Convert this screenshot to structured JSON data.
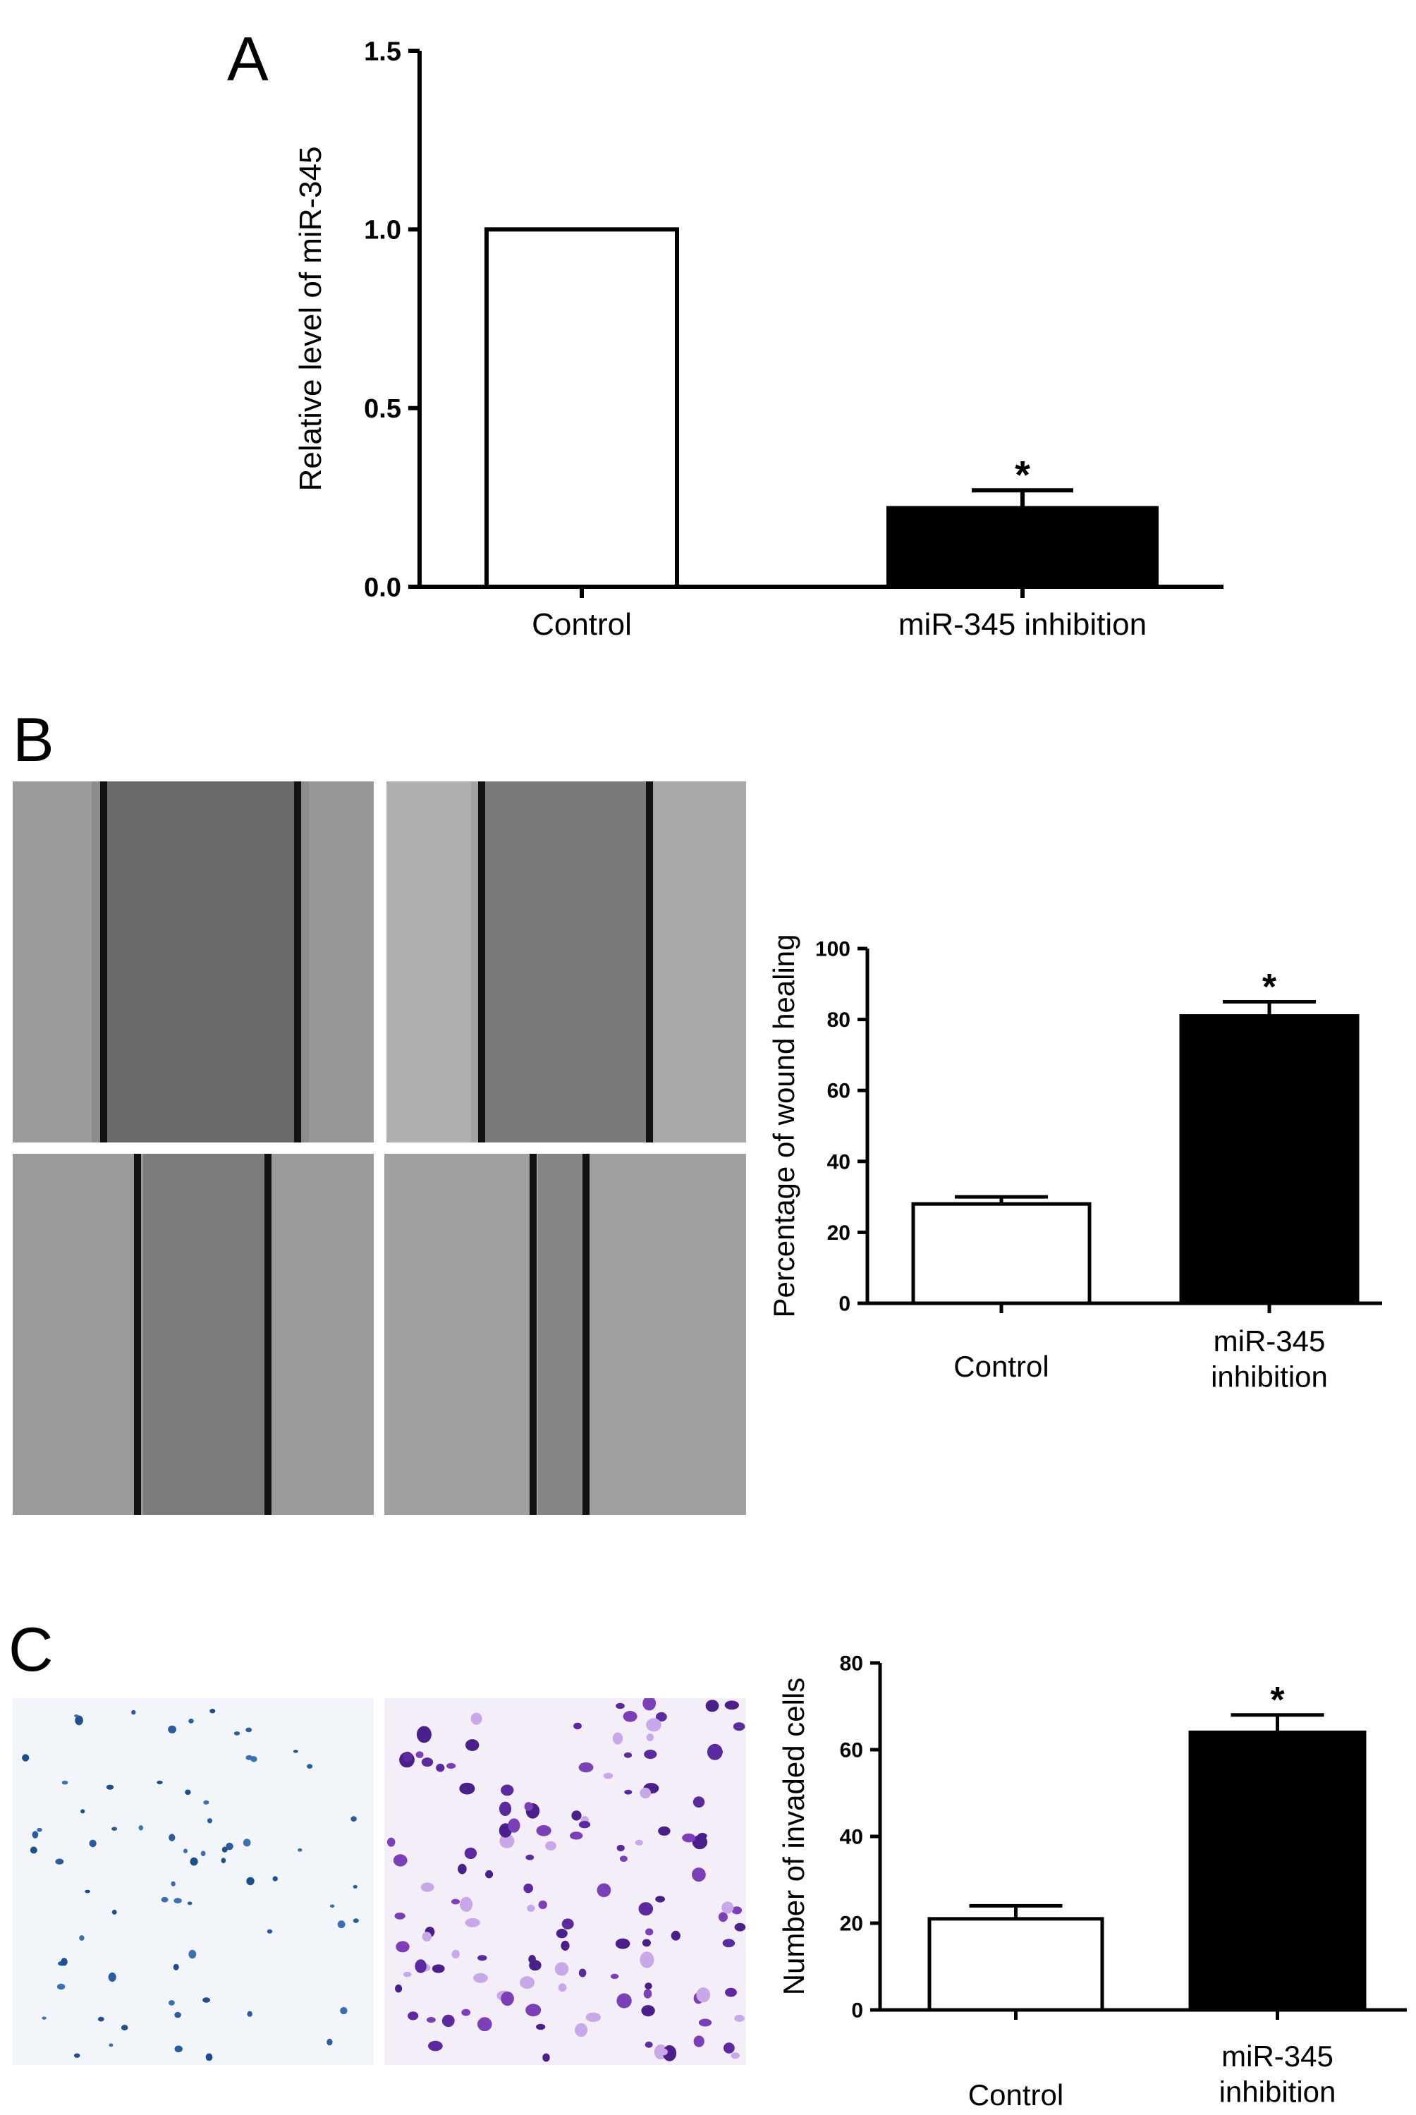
{
  "panels": {
    "a": {
      "letter": "A"
    },
    "b": {
      "letter": "B"
    },
    "c": {
      "letter": "C"
    }
  },
  "chart_data": [
    {
      "type": "bar",
      "panel": "A",
      "title": "",
      "xlabel": "",
      "ylabel": "Relative level of miR-345",
      "categories": [
        "Control",
        "miR-345 inhibition"
      ],
      "values": [
        1.0,
        0.22
      ],
      "error": [
        0,
        0.05
      ],
      "significance": [
        "",
        "*"
      ],
      "bar_colors": [
        "#ffffff",
        "#000000"
      ],
      "ylim": [
        0,
        1.5
      ],
      "yticks": [
        "0.0",
        "0.5",
        "1.0",
        "1.5"
      ],
      "grid": false
    },
    {
      "type": "bar",
      "panel": "B",
      "title": "",
      "xlabel": "",
      "ylabel": "Percentage of wound healing",
      "categories": [
        "Control",
        "miR-345 inhibition"
      ],
      "category_lines": [
        [
          "Control"
        ],
        [
          "miR-345",
          "inhibition"
        ]
      ],
      "values": [
        28,
        81
      ],
      "error": [
        2,
        4
      ],
      "significance": [
        "",
        "*"
      ],
      "bar_colors": [
        "#ffffff",
        "#000000"
      ],
      "ylim": [
        0,
        100
      ],
      "yticks": [
        "0",
        "20",
        "40",
        "60",
        "80",
        "100"
      ],
      "grid": false
    },
    {
      "type": "bar",
      "panel": "C",
      "title": "",
      "xlabel": "",
      "ylabel": "Number of invaded cells",
      "categories": [
        "Control",
        "miR-345 inhibition"
      ],
      "category_lines": [
        [
          "Control"
        ],
        [
          "miR-345",
          "inhibition"
        ]
      ],
      "values": [
        21,
        64
      ],
      "error": [
        3,
        4
      ],
      "significance": [
        "",
        "*"
      ],
      "bar_colors": [
        "#ffffff",
        "#000000"
      ],
      "ylim": [
        0,
        80
      ],
      "yticks": [
        "0",
        "20",
        "40",
        "60",
        "80"
      ],
      "grid": false
    }
  ],
  "images": {
    "wound": [
      "wound-control-0h",
      "wound-inhibition-0h",
      "wound-control-24h",
      "wound-inhibition-24h"
    ],
    "invasion": [
      "invasion-control",
      "invasion-inhibition"
    ]
  }
}
